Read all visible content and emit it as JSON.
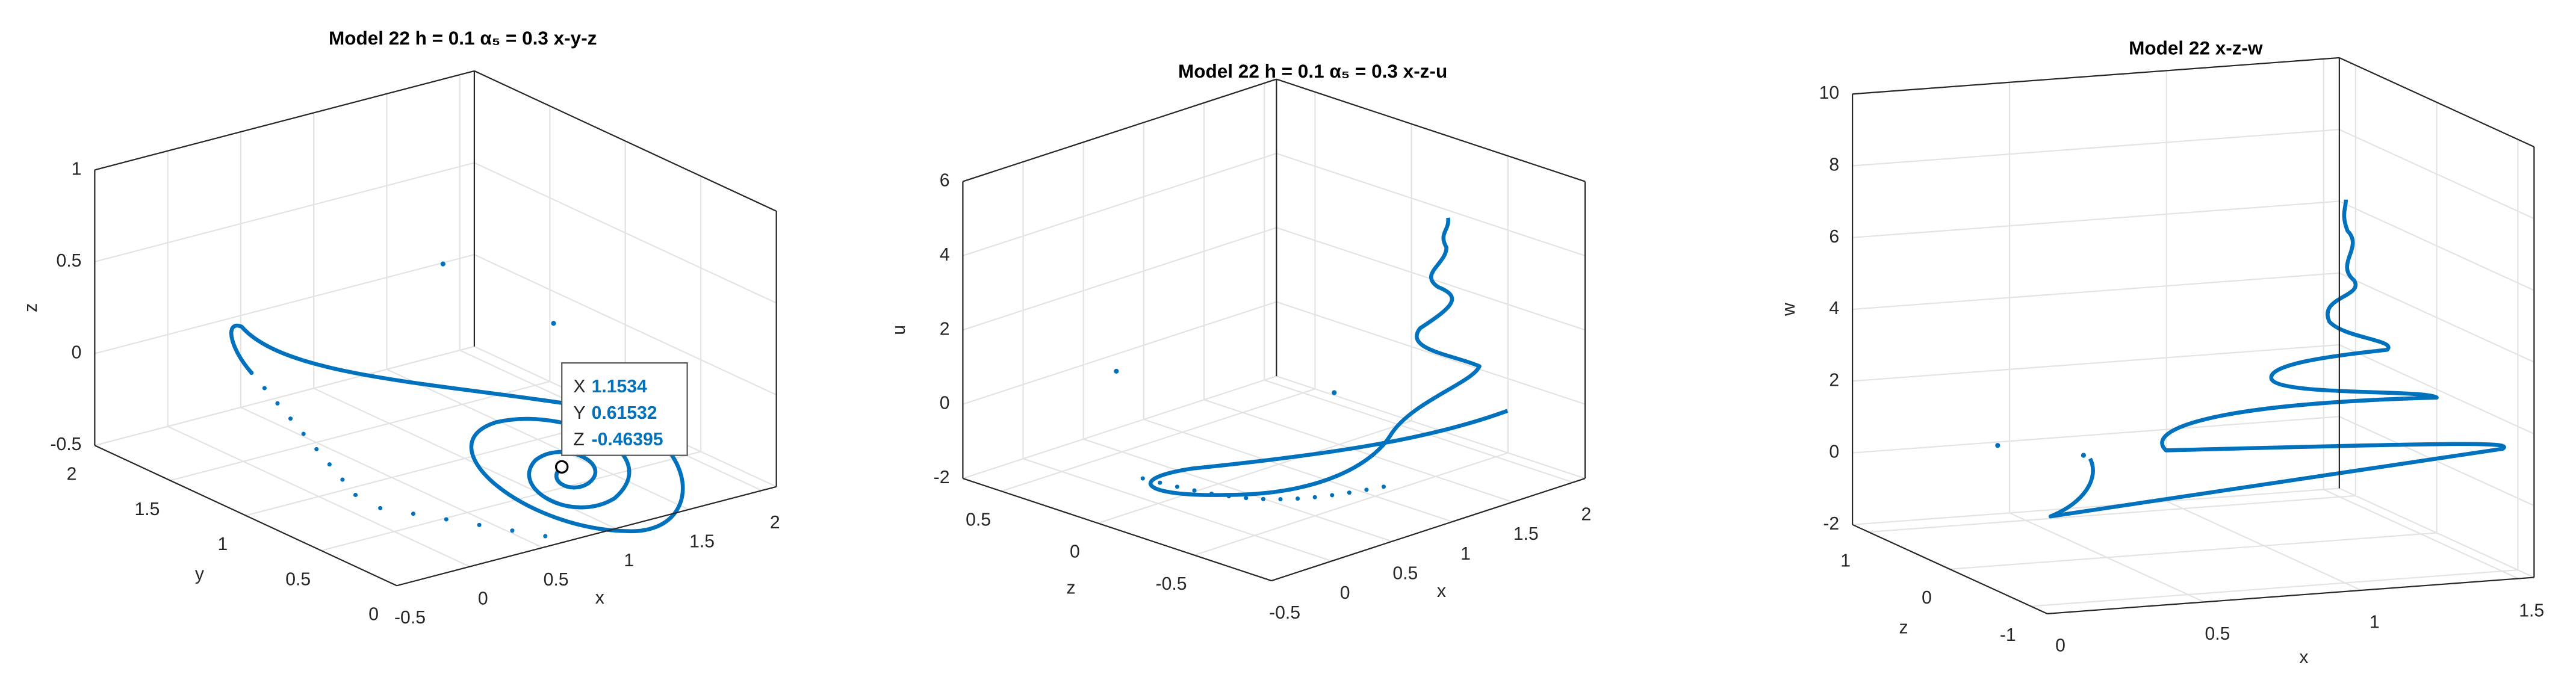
{
  "panels": [
    {
      "title": "Model 22 h = 0.1 α₅ = 0.3 x-y-z",
      "floor_a": {
        "label": "x",
        "lim": [
          -0.5,
          2.1
        ],
        "ticks": [
          -0.5,
          0,
          0.5,
          1,
          1.5,
          2
        ]
      },
      "floor_b": {
        "label": "y",
        "lim": [
          0,
          2
        ],
        "ticks": [
          0,
          0.5,
          1,
          1.5,
          2
        ]
      },
      "vertical": {
        "label": "z",
        "lim": [
          -0.5,
          1
        ],
        "ticks": [
          -0.5,
          0,
          0.5,
          1
        ]
      },
      "datatip": [
        {
          "label": "X",
          "value": 1.1534
        },
        {
          "label": "Y",
          "value": 0.61532
        },
        {
          "label": "Z",
          "value": -0.46395
        }
      ]
    },
    {
      "title": "Model 22 h = 0.1 α₅ = 0.3 x-z-u",
      "floor_a": {
        "label": "x",
        "lim": [
          -0.5,
          2.1
        ],
        "ticks": [
          -0.5,
          0,
          0.5,
          1,
          1.5,
          2
        ]
      },
      "floor_b": {
        "label": "z",
        "lim": [
          -0.9,
          0.7
        ],
        "ticks": [
          -0.5,
          0,
          0.5
        ]
      },
      "vertical": {
        "label": "u",
        "lim": [
          -2,
          6
        ],
        "ticks": [
          -2,
          0,
          2,
          4,
          6
        ]
      }
    },
    {
      "title": "Model 22 x-z-w",
      "floor_a": {
        "label": "x",
        "lim": [
          0,
          1.55
        ],
        "ticks": [
          0,
          0.5,
          1,
          1.5
        ]
      },
      "floor_b": {
        "label": "z",
        "lim": [
          -1.2,
          1.2
        ],
        "ticks": [
          -1,
          0,
          1
        ]
      },
      "vertical": {
        "label": "w",
        "lim": [
          -2,
          10
        ],
        "ticks": [
          -2,
          0,
          2,
          4,
          6,
          8,
          10
        ]
      }
    }
  ]
}
